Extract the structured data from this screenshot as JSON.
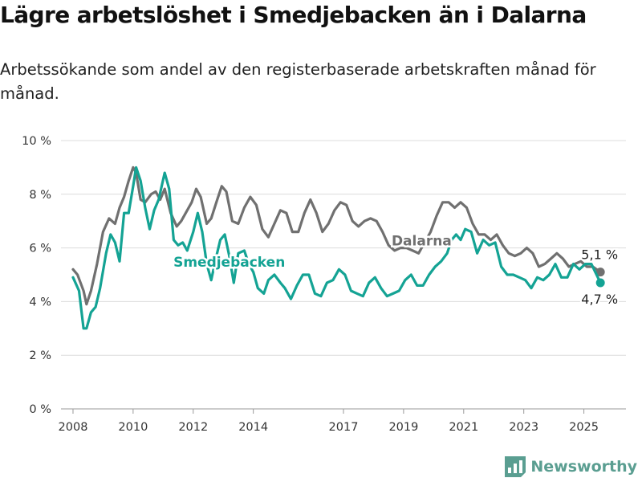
{
  "title": "Lägre arbetslöshet i Smedjebacken än i Dalarna",
  "subtitle": "Arbetssökande som andel av den registerbaserade arbetskraften månad för månad.",
  "brand": {
    "name": "Newsworthy",
    "icon": "newsworthy-logo-icon",
    "color": "#5a9e91"
  },
  "chart_data": {
    "type": "line",
    "ylim": [
      0,
      10
    ],
    "xlim": [
      2007.6,
      2026.4
    ],
    "y_ticks": [
      0,
      2,
      4,
      6,
      8,
      10
    ],
    "y_tick_labels": [
      "0 %",
      "2 %",
      "4 %",
      "6 %",
      "8 %",
      "10 %"
    ],
    "x_ticks": [
      2008,
      2010,
      2012,
      2014,
      2017,
      2019,
      2021,
      2023,
      2025
    ],
    "x_tick_labels": [
      "2008",
      "2010",
      "2012",
      "2014",
      "2017",
      "2019",
      "2021",
      "2023",
      "2025"
    ],
    "grid": "horizontal",
    "series": [
      {
        "name": "Dalarna",
        "color": "#707070",
        "label_pos": [
          2019.6,
          6.1
        ],
        "x": [
          2008.0,
          2008.15,
          2008.35,
          2008.45,
          2008.6,
          2008.8,
          2009.0,
          2009.2,
          2009.4,
          2009.55,
          2009.7,
          2009.85,
          2010.0,
          2010.1,
          2010.25,
          2010.4,
          2010.6,
          2010.75,
          2010.9,
          2011.05,
          2011.25,
          2011.45,
          2011.6,
          2011.75,
          2011.95,
          2012.1,
          2012.25,
          2012.45,
          2012.6,
          2012.8,
          2012.95,
          2013.1,
          2013.3,
          2013.5,
          2013.7,
          2013.9,
          2014.1,
          2014.3,
          2014.5,
          2014.7,
          2014.9,
          2015.1,
          2015.3,
          2015.5,
          2015.7,
          2015.9,
          2016.1,
          2016.3,
          2016.5,
          2016.7,
          2016.9,
          2017.1,
          2017.3,
          2017.5,
          2017.7,
          2017.9,
          2018.1,
          2018.3,
          2018.5,
          2018.7,
          2018.9,
          2019.1,
          2019.3,
          2019.5,
          2019.7,
          2019.9,
          2020.1,
          2020.3,
          2020.5,
          2020.7,
          2020.9,
          2021.1,
          2021.3,
          2021.5,
          2021.7,
          2021.9,
          2022.1,
          2022.3,
          2022.5,
          2022.7,
          2022.9,
          2023.1,
          2023.3,
          2023.5,
          2023.7,
          2023.9,
          2024.1,
          2024.3,
          2024.5,
          2024.7,
          2024.9,
          2025.1,
          2025.3,
          2025.55
        ],
        "y": [
          5.2,
          5.0,
          4.4,
          3.9,
          4.4,
          5.4,
          6.6,
          7.1,
          6.9,
          7.5,
          7.9,
          8.5,
          9.0,
          8.8,
          7.8,
          7.7,
          8.0,
          8.1,
          7.8,
          8.2,
          7.3,
          6.8,
          7.0,
          7.3,
          7.7,
          8.2,
          7.9,
          6.9,
          7.1,
          7.8,
          8.3,
          8.1,
          7.0,
          6.9,
          7.5,
          7.9,
          7.6,
          6.7,
          6.4,
          6.9,
          7.4,
          7.3,
          6.6,
          6.6,
          7.3,
          7.8,
          7.3,
          6.6,
          6.9,
          7.4,
          7.7,
          7.6,
          7.0,
          6.8,
          7.0,
          7.1,
          7.0,
          6.6,
          6.1,
          5.9,
          6.0,
          6.0,
          5.9,
          5.8,
          6.2,
          6.6,
          7.2,
          7.7,
          7.7,
          7.5,
          7.7,
          7.5,
          6.9,
          6.5,
          6.5,
          6.3,
          6.5,
          6.1,
          5.8,
          5.7,
          5.8,
          6.0,
          5.8,
          5.3,
          5.4,
          5.6,
          5.8,
          5.6,
          5.3,
          5.4,
          5.5,
          5.3,
          5.3,
          5.1
        ]
      },
      {
        "name": "Smedjebacken",
        "color": "#14a394",
        "label_pos": [
          2013.2,
          5.3
        ],
        "x": [
          2008.0,
          2008.2,
          2008.35,
          2008.45,
          2008.6,
          2008.75,
          2008.9,
          2009.1,
          2009.25,
          2009.4,
          2009.55,
          2009.7,
          2009.85,
          2010.0,
          2010.1,
          2010.25,
          2010.4,
          2010.55,
          2010.7,
          2010.85,
          2011.05,
          2011.2,
          2011.35,
          2011.5,
          2011.65,
          2011.8,
          2012.0,
          2012.15,
          2012.3,
          2012.45,
          2012.6,
          2012.75,
          2012.9,
          2013.05,
          2013.2,
          2013.35,
          2013.5,
          2013.7,
          2013.85,
          2014.0,
          2014.15,
          2014.35,
          2014.5,
          2014.7,
          2014.9,
          2015.05,
          2015.25,
          2015.45,
          2015.65,
          2015.85,
          2016.05,
          2016.25,
          2016.45,
          2016.65,
          2016.85,
          2017.05,
          2017.25,
          2017.45,
          2017.65,
          2017.85,
          2018.05,
          2018.25,
          2018.45,
          2018.65,
          2018.85,
          2019.05,
          2019.25,
          2019.45,
          2019.65,
          2019.85,
          2020.05,
          2020.25,
          2020.45,
          2020.6,
          2020.75,
          2020.9,
          2021.05,
          2021.25,
          2021.45,
          2021.65,
          2021.85,
          2022.05,
          2022.25,
          2022.45,
          2022.65,
          2022.85,
          2023.05,
          2023.25,
          2023.45,
          2023.65,
          2023.85,
          2024.05,
          2024.25,
          2024.45,
          2024.65,
          2024.85,
          2025.05,
          2025.25,
          2025.55
        ],
        "y": [
          4.9,
          4.4,
          3.0,
          3.0,
          3.6,
          3.8,
          4.5,
          5.8,
          6.5,
          6.2,
          5.5,
          7.3,
          7.3,
          8.3,
          9.0,
          8.5,
          7.5,
          6.7,
          7.4,
          7.8,
          8.8,
          8.2,
          6.3,
          6.1,
          6.2,
          5.9,
          6.6,
          7.3,
          6.6,
          5.4,
          4.8,
          5.6,
          6.3,
          6.5,
          5.7,
          4.7,
          5.8,
          5.9,
          5.4,
          5.1,
          4.5,
          4.3,
          4.8,
          5.0,
          4.7,
          4.5,
          4.1,
          4.6,
          5.0,
          5.0,
          4.3,
          4.2,
          4.7,
          4.8,
          5.2,
          5.0,
          4.4,
          4.3,
          4.2,
          4.7,
          4.9,
          4.5,
          4.2,
          4.3,
          4.4,
          4.8,
          5.0,
          4.6,
          4.6,
          5.0,
          5.3,
          5.5,
          5.8,
          6.3,
          6.5,
          6.3,
          6.7,
          6.6,
          5.8,
          6.3,
          6.1,
          6.2,
          5.3,
          5.0,
          5.0,
          4.9,
          4.8,
          4.5,
          4.9,
          4.8,
          5.0,
          5.4,
          4.9,
          4.9,
          5.4,
          5.2,
          5.4,
          5.4,
          4.7
        ]
      }
    ],
    "end_labels": [
      {
        "series": "Dalarna",
        "text": "5,1 %",
        "position": "above"
      },
      {
        "series": "Smedjebacken",
        "text": "4,7 %",
        "position": "below"
      }
    ]
  }
}
